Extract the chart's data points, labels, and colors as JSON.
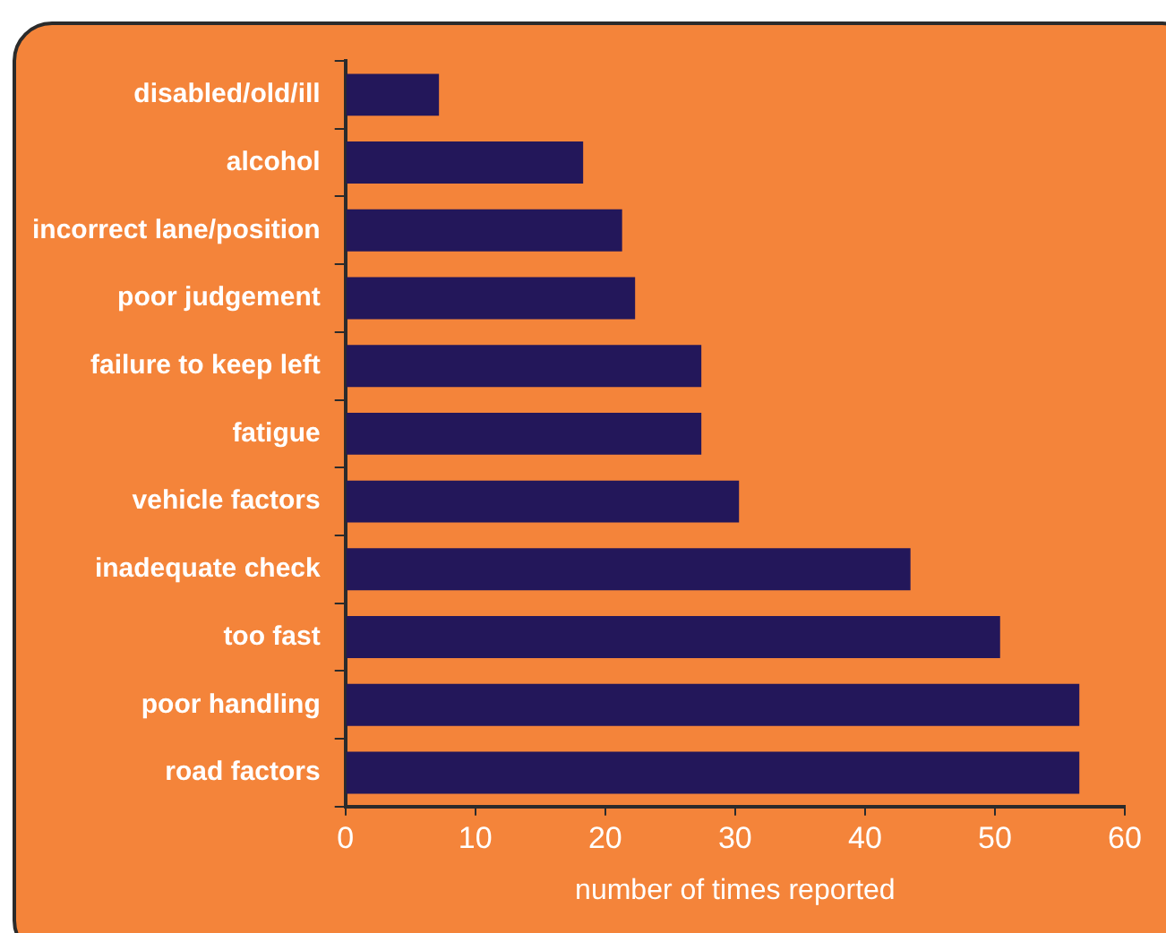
{
  "chart_data": {
    "type": "bar",
    "orientation": "horizontal",
    "xlabel": "number of times reported",
    "categories": [
      "disabled/old/ill",
      "alcohol",
      "incorrect lane/position",
      "poor judgement",
      "failure to keep left",
      "fatigue",
      "vehicle factors",
      "inadequate check",
      "too fast",
      "poor handling",
      "road factors"
    ],
    "values": [
      7.2,
      18.3,
      21.3,
      22.3,
      27.4,
      27.4,
      30.3,
      43.5,
      50.4,
      56.5,
      56.5
    ],
    "color": "#23175a",
    "xlim": [
      0,
      60
    ],
    "xticks": [
      0,
      10,
      20,
      30,
      40,
      50,
      60
    ]
  }
}
